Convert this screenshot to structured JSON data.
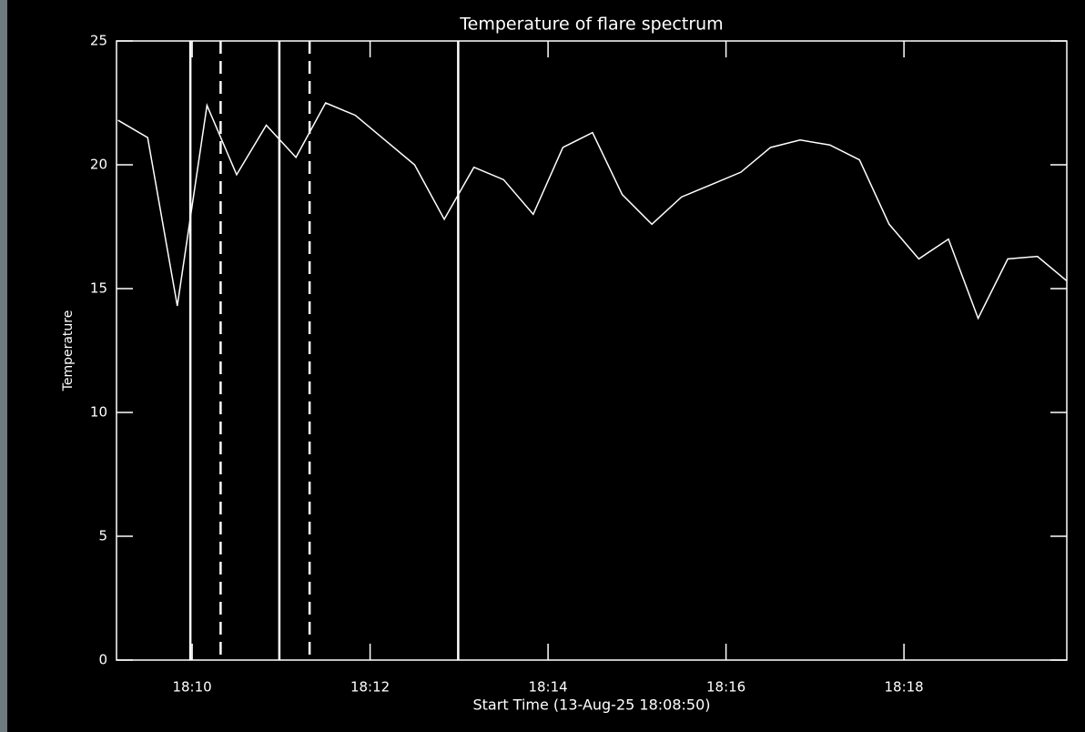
{
  "chart_data": {
    "type": "line",
    "title": "Temperature of flare spectrum",
    "x_label": "Start Time (13-Aug-25 18:08:50)",
    "y_label": "Temperature",
    "x": [
      9.1667,
      9.5,
      9.8333,
      10.1667,
      10.5,
      10.8333,
      11.1667,
      11.5,
      11.8333,
      12.1667,
      12.5,
      12.8333,
      13.1667,
      13.5,
      13.8333,
      14.1667,
      14.5,
      14.8333,
      15.1667,
      15.5,
      15.8333,
      16.1667,
      16.5,
      16.8333,
      17.1667,
      17.5,
      17.8333,
      18.1667,
      18.5,
      18.8333,
      19.1667,
      19.5,
      19.8333
    ],
    "series": [
      {
        "color": "#ffffff",
        "values": [
          21.8,
          21.1,
          14.3,
          22.4,
          19.6,
          21.6,
          20.3,
          22.5,
          22.0,
          21.0,
          20.0,
          17.8,
          19.9,
          19.4,
          18.0,
          20.7,
          21.3,
          18.8,
          17.6,
          18.7,
          19.2,
          19.7,
          20.7,
          21.0,
          20.8,
          20.2,
          17.6,
          16.2,
          17.0,
          13.8,
          16.2,
          16.3,
          15.3
        ]
      }
    ],
    "xlim": [
      9.15,
      19.83
    ],
    "ylim": [
      0,
      25
    ],
    "xticks": [
      {
        "value": 10,
        "label": "18:10"
      },
      {
        "value": 12,
        "label": "18:12"
      },
      {
        "value": 14,
        "label": "18:14"
      },
      {
        "value": 16,
        "label": "18:16"
      },
      {
        "value": 18,
        "label": "18:18"
      }
    ],
    "yticks": [
      0,
      5,
      10,
      15,
      20,
      25
    ],
    "vlines": [
      {
        "x": 9.98,
        "style": "solid"
      },
      {
        "x": 10.32,
        "style": "dashed"
      },
      {
        "x": 10.98,
        "style": "solid"
      },
      {
        "x": 11.32,
        "style": "dashed"
      },
      {
        "x": 12.99,
        "style": "solid"
      }
    ],
    "grid": false
  }
}
